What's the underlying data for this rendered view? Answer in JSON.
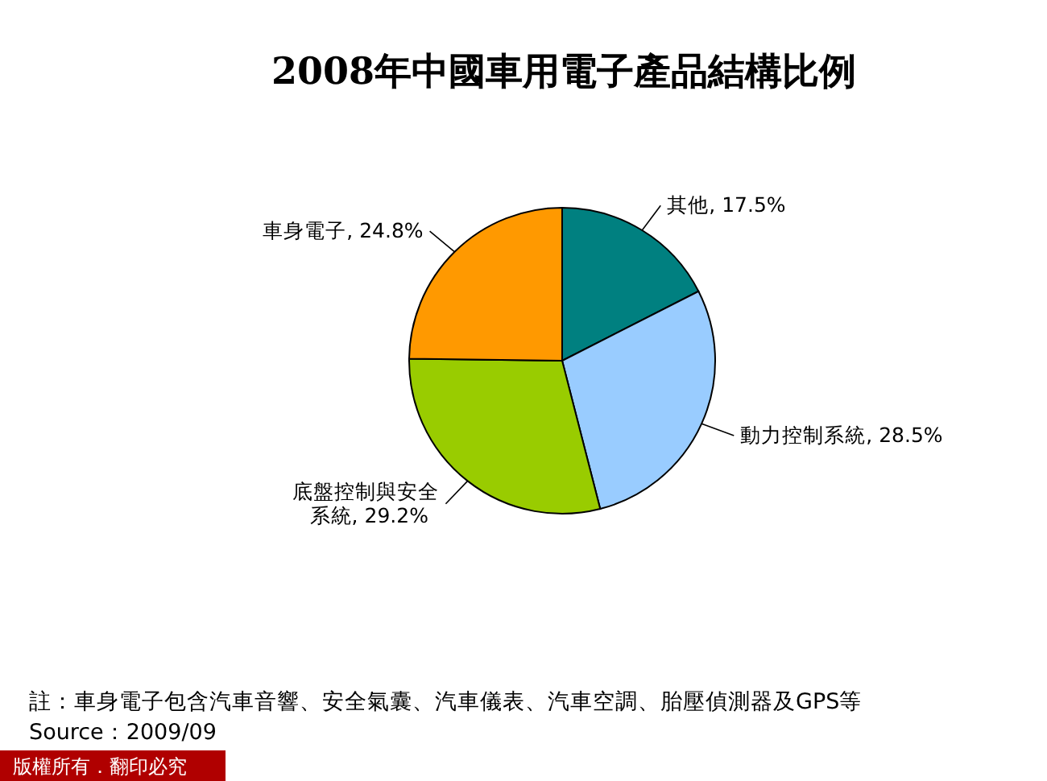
{
  "chart_data": {
    "type": "pie",
    "title": "2008年中國車用電子產品結構比例",
    "categories": [
      "其他",
      "動力控制系統",
      "底盤控制與安全系統",
      "車身電子"
    ],
    "values": [
      17.5,
      28.5,
      29.2,
      24.8
    ],
    "colors": [
      "#008080",
      "#99ccff",
      "#99cc00",
      "#ff9900"
    ],
    "value_labels": [
      "17.5%",
      "28.5%",
      "29.2%",
      "24.8%"
    ],
    "annotations": [
      "註：車身電子包含汽車音響、安全氣囊、汽車儀表、汽車空調、胎壓偵測器及GPS等",
      "Source：2009/09",
      "版權所有．翻印必究"
    ]
  }
}
